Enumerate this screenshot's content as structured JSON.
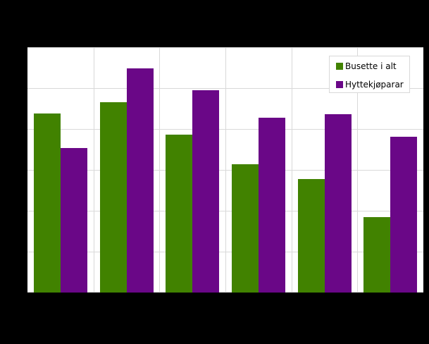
{
  "chart_data": {
    "type": "bar",
    "title": "",
    "xlabel": "",
    "ylabel": "",
    "categories": [
      "",
      "",
      "",
      "",
      "",
      ""
    ],
    "series": [
      {
        "name": "Busette i alt",
        "color": "#418200",
        "values": [
          4.38,
          4.66,
          3.86,
          3.14,
          2.78,
          1.84
        ]
      },
      {
        "name": "Hyttekjøparar",
        "color": "#6a0787",
        "values": [
          3.53,
          5.48,
          4.95,
          4.28,
          4.36,
          3.81
        ]
      }
    ],
    "ylim": [
      0,
      6
    ],
    "y_gridlines": [
      0,
      1,
      2,
      3,
      4,
      5,
      6
    ],
    "grid": true,
    "legend_position": "top-right inside plot",
    "note": "Tick labels, title and category labels are rendered black-on-black and not visible; values expressed in gridline units."
  },
  "legend": {
    "items": [
      {
        "label": "Busette i alt",
        "color": "#418200"
      },
      {
        "label": "Hyttekjøparar",
        "color": "#6a0787"
      }
    ]
  }
}
